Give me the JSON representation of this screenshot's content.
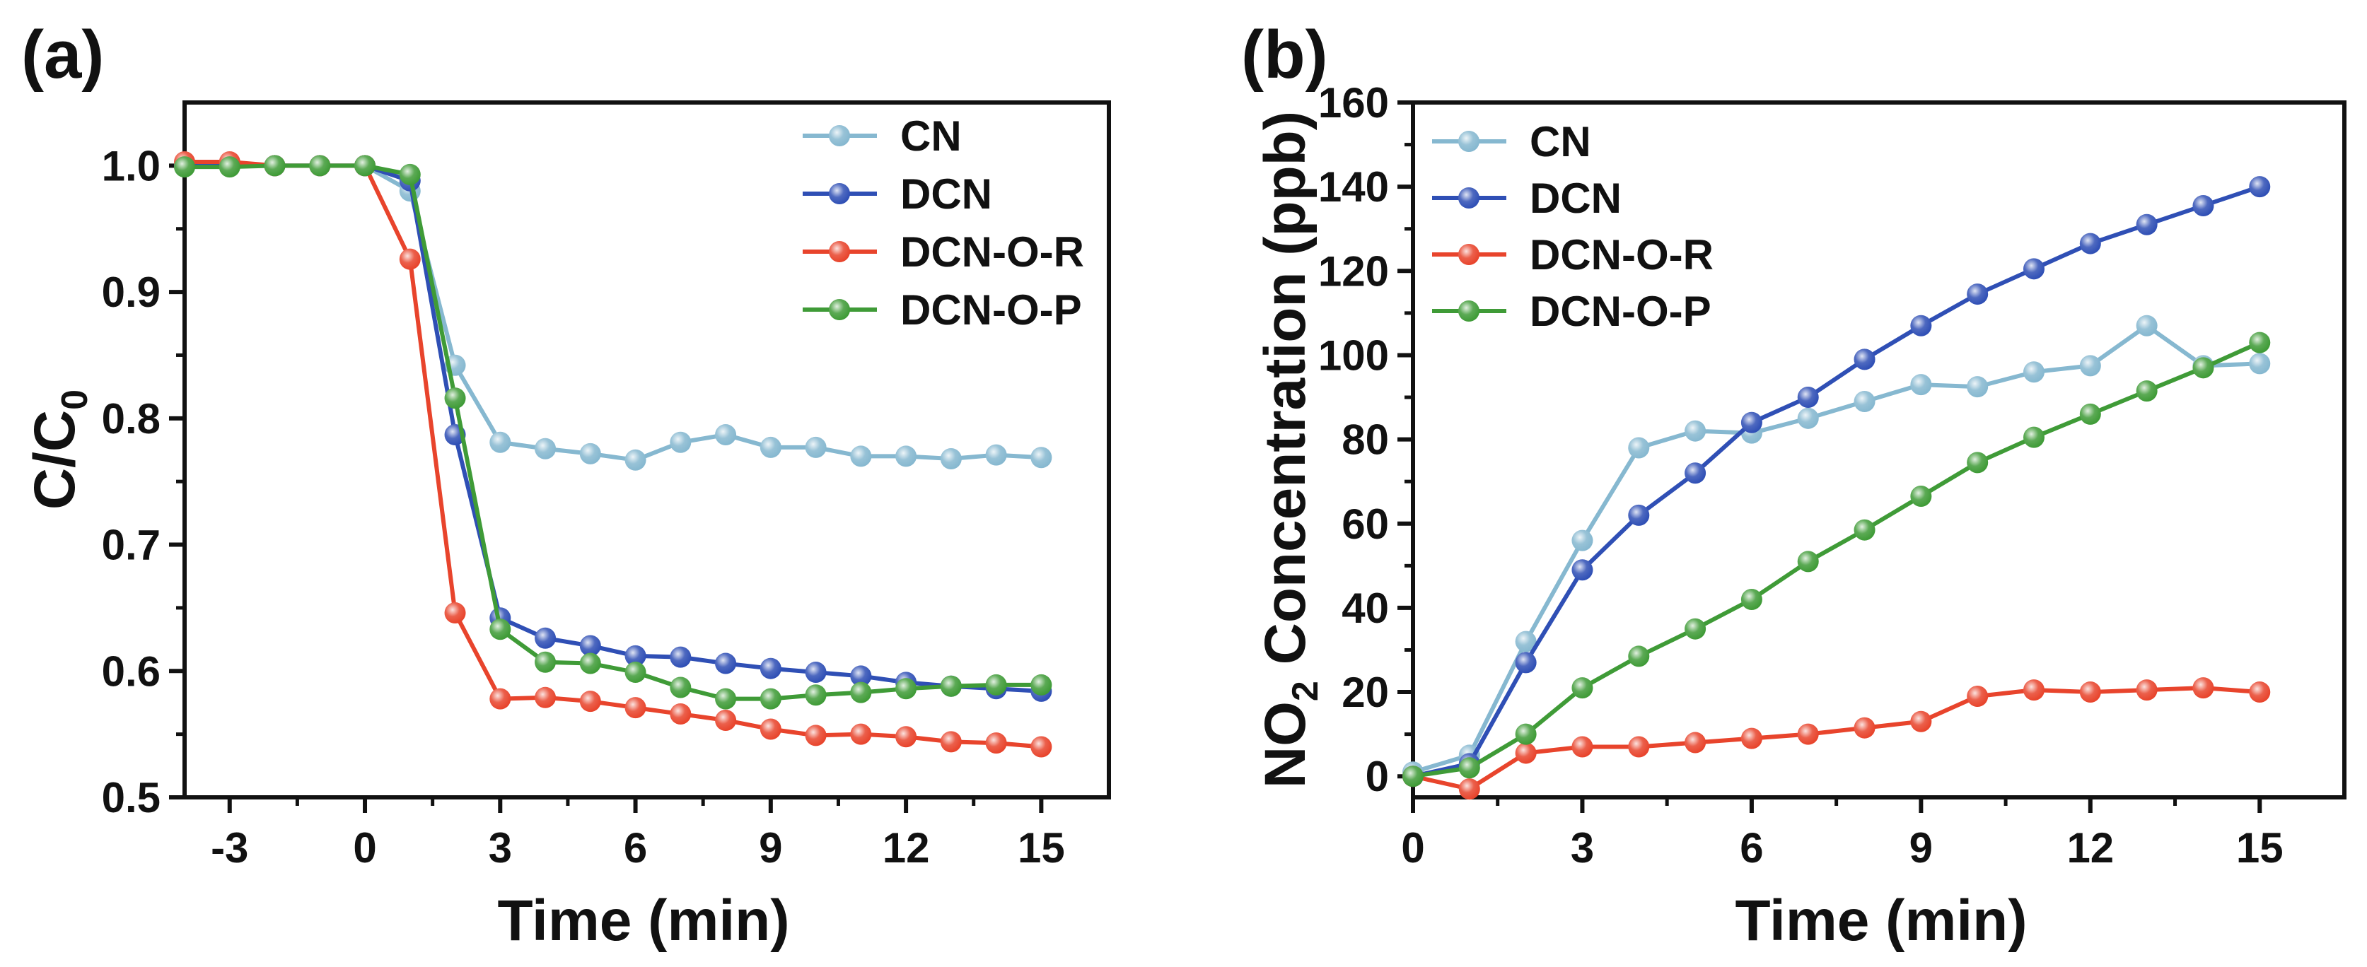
{
  "colors": {
    "CN": "#86b8d0",
    "DCN": "#2f4fb5",
    "DCN-O-R": "#e8442c",
    "DCN-O-P": "#3f9b37"
  },
  "chart_data": [
    {
      "type": "line",
      "panel_label": "(a)",
      "xlabel": "Time (min)",
      "ylabel": {
        "main": "C/C",
        "sub": "0"
      },
      "xlim": [
        -4,
        16.5
      ],
      "ylim": [
        0.5,
        1.05
      ],
      "xticks": [
        -3,
        0,
        3,
        6,
        9,
        12,
        15
      ],
      "xtick_labels": [
        "-3",
        "0",
        "3",
        "6",
        "9",
        "12",
        "15"
      ],
      "yticks": [
        0.5,
        0.6,
        0.7,
        0.8,
        0.9,
        1.0
      ],
      "ytick_labels": [
        "0.5",
        "0.6",
        "0.7",
        "0.8",
        "0.9",
        "1.0"
      ],
      "legend_position": "top-right",
      "x": [
        -4,
        -3,
        -2,
        -1,
        0,
        1,
        2,
        3,
        4,
        5,
        6,
        7,
        8,
        9,
        10,
        11,
        12,
        13,
        14,
        15
      ],
      "series": [
        {
          "name": "CN",
          "values": [
            1.0,
            1.0,
            1.0,
            1.0,
            1.0,
            0.98,
            0.842,
            0.781,
            0.776,
            0.772,
            0.767,
            0.781,
            0.787,
            0.777,
            0.777,
            0.77,
            0.77,
            0.768,
            0.771,
            0.769
          ]
        },
        {
          "name": "DCN",
          "values": [
            1.0,
            1.0,
            1.0,
            1.0,
            1.0,
            0.988,
            0.787,
            0.642,
            0.626,
            0.62,
            0.612,
            0.611,
            0.606,
            0.602,
            0.599,
            0.596,
            0.591,
            0.588,
            0.586,
            0.584
          ]
        },
        {
          "name": "DCN-O-R",
          "values": [
            1.003,
            1.003,
            1.0,
            1.0,
            1.0,
            0.926,
            0.646,
            0.578,
            0.579,
            0.576,
            0.571,
            0.566,
            0.561,
            0.554,
            0.549,
            0.55,
            0.548,
            0.544,
            0.543,
            0.54
          ]
        },
        {
          "name": "DCN-O-P",
          "values": [
            0.999,
            0.999,
            1.0,
            1.0,
            1.0,
            0.993,
            0.816,
            0.633,
            0.607,
            0.606,
            0.599,
            0.587,
            0.578,
            0.578,
            0.581,
            0.583,
            0.586,
            0.588,
            0.589,
            0.589
          ]
        }
      ]
    },
    {
      "type": "line",
      "panel_label": "(b)",
      "xlabel": "Time (min)",
      "ylabel": {
        "main": "NO",
        "sub": "2",
        "rest": " Concentration (ppb)"
      },
      "xlim": [
        0,
        16.5
      ],
      "ylim": [
        -5,
        160
      ],
      "xticks": [
        0,
        3,
        6,
        9,
        12,
        15
      ],
      "xtick_labels": [
        "0",
        "3",
        "6",
        "9",
        "12",
        "15"
      ],
      "yticks": [
        0,
        20,
        40,
        60,
        80,
        100,
        120,
        140,
        160
      ],
      "ytick_labels": [
        "0",
        "20",
        "40",
        "60",
        "80",
        "100",
        "120",
        "140",
        "160"
      ],
      "legend_position": "top-left",
      "x": [
        0,
        1,
        2,
        3,
        4,
        5,
        6,
        7,
        8,
        9,
        10,
        11,
        12,
        13,
        14,
        15
      ],
      "series": [
        {
          "name": "CN",
          "values": [
            1,
            5,
            32,
            56,
            78,
            82,
            81.5,
            85,
            89,
            93,
            92.5,
            96,
            97.5,
            107,
            97.5,
            98
          ]
        },
        {
          "name": "DCN",
          "values": [
            0,
            3,
            27,
            49,
            62,
            72,
            84,
            90,
            99,
            107,
            114.5,
            120.5,
            126.5,
            131,
            135.5,
            140
          ]
        },
        {
          "name": "DCN-O-R",
          "values": [
            0,
            -3,
            5.5,
            7,
            7,
            8,
            9,
            10,
            11.5,
            13,
            19,
            20.5,
            20,
            20.5,
            21,
            20
          ]
        },
        {
          "name": "DCN-O-P",
          "values": [
            0,
            2,
            10,
            21,
            28.5,
            35,
            42,
            51,
            58.5,
            66.5,
            74.5,
            80.5,
            86,
            91.5,
            97,
            103
          ]
        }
      ]
    }
  ]
}
